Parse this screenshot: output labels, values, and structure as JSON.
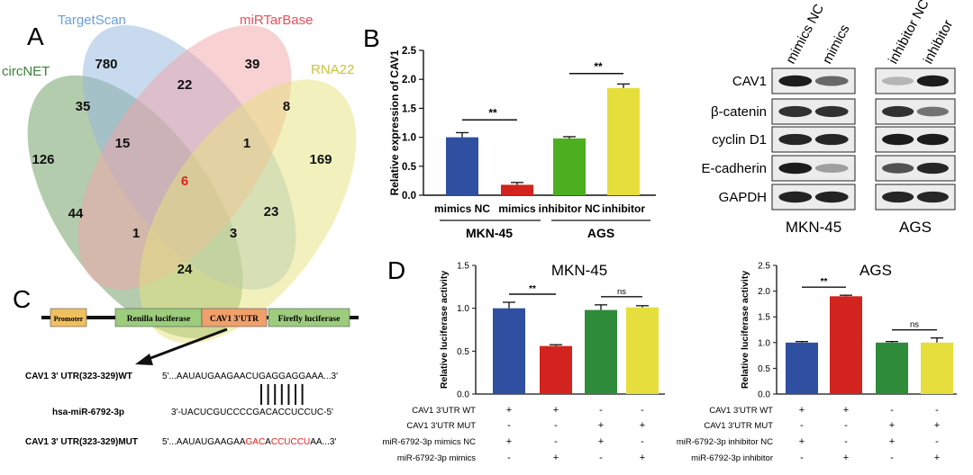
{
  "panelA": {
    "letter": "A",
    "sets": [
      {
        "name": "TargetScan",
        "color": "#6a9fd8"
      },
      {
        "name": "miRTarBase",
        "color": "#e8505b"
      },
      {
        "name": "circNET",
        "color": "#3f7f3a"
      },
      {
        "name": "RNA22",
        "color": "#c9c43a"
      }
    ],
    "fills": {
      "green": "#6a9a5e",
      "blue": "#92b6de",
      "pink": "#f2a3a8",
      "yellow": "#e6e37c"
    },
    "counts": [
      "780",
      "39",
      "35",
      "22",
      "8",
      "126",
      "15",
      "1",
      "169",
      "6",
      "44",
      "23",
      "1",
      "3",
      "24"
    ],
    "center_color": "#e02020"
  },
  "panelB": {
    "letter": "B",
    "chart_data": {
      "type": "bar",
      "ylabel": "Relative expression of CAV1",
      "ylim": [
        0,
        2.5
      ],
      "yticks": [
        "0.0",
        "0.5",
        "1.0",
        "1.5",
        "2.0",
        "2.5"
      ],
      "categories": [
        "mimics NC",
        "mimics",
        "inhibitor NC",
        "inhibitor"
      ],
      "values": [
        1.0,
        0.18,
        0.98,
        1.85
      ],
      "errors": [
        0.08,
        0.04,
        0.03,
        0.07
      ],
      "colors": [
        "#2f4fa0",
        "#d2231e",
        "#4caf20",
        "#e6de3c"
      ],
      "groups": [
        "MKN-45",
        "AGS"
      ],
      "significance": [
        "**",
        "**"
      ]
    },
    "blot": {
      "left_lanes": [
        "mimics NC",
        "mimics"
      ],
      "right_lanes": [
        "inhibitor NC",
        "inhibitor"
      ],
      "proteins": [
        "CAV1",
        "β-catenin",
        "cyclin D1",
        "E-cadherin",
        "GAPDH"
      ],
      "groups": [
        "MKN-45",
        "AGS"
      ]
    }
  },
  "panelC": {
    "letter": "C",
    "construct": [
      "Promoter",
      "Renilla luciferase",
      "CAV1 3'UTR",
      "Firefly luciferase"
    ],
    "colors": {
      "promoter": "#f0c060",
      "renilla": "#9ccc7c",
      "utr": "#f0a06a",
      "firefly": "#9ccc7c"
    },
    "wt_label": "CAV1  3' UTR(323-329)WT",
    "wt_seq": "5'...AAUAUGAAGAACUGAGGAGGAAA...3'",
    "mir_label": "hsa-miR-6792-3p",
    "mir_seq": "3'-UACUCGUCCCCGACACCUCCUC-5'",
    "mut_label": "CAV1  3' UTR(323-329)MUT",
    "mut_seq_parts": [
      "5'...AAUAUGAAGAA",
      "GAC",
      "A",
      "CCUCCU",
      "AA...3'"
    ],
    "mut_color": "#e02020"
  },
  "panelD": {
    "letter": "D",
    "charts": [
      {
        "type": "bar",
        "title": "MKN-45",
        "ylabel": "Relative luciferase activity",
        "ylim": [
          0,
          1.5
        ],
        "yticks": [
          "0.0",
          "0.5",
          "1.0",
          "1.5"
        ],
        "values": [
          1.0,
          0.56,
          0.98,
          1.01
        ],
        "errors": [
          0.07,
          0.015,
          0.06,
          0.02
        ],
        "colors": [
          "#2f4fa0",
          "#d2231e",
          "#2e8b3a",
          "#e6de3c"
        ],
        "significance": [
          "**",
          "ns"
        ],
        "row_labels": [
          "CAV1 3'UTR WT",
          "CAV1 3'UTR MUT",
          "miR-6792-3p mimics NC",
          "miR-6792-3p mimics"
        ],
        "signs": [
          [
            "+",
            "+",
            "-",
            "-"
          ],
          [
            "-",
            "-",
            "+",
            "+"
          ],
          [
            "+",
            "-",
            "+",
            "-"
          ],
          [
            "-",
            "+",
            "-",
            "+"
          ]
        ]
      },
      {
        "type": "bar",
        "title": "AGS",
        "ylabel": "Relative luciferase activity",
        "ylim": [
          0,
          2.5
        ],
        "yticks": [
          "0.0",
          "0.5",
          "1.0",
          "1.5",
          "2.0",
          "2.5"
        ],
        "values": [
          1.0,
          1.9,
          1.0,
          1.0
        ],
        "errors": [
          0.02,
          0.02,
          0.02,
          0.09
        ],
        "colors": [
          "#2f4fa0",
          "#d2231e",
          "#2e8b3a",
          "#e6de3c"
        ],
        "significance": [
          "**",
          "ns"
        ],
        "row_labels": [
          "CAV1 3'UTR WT",
          "CAV1 3'UTR MUT",
          "miR-6792-3p inhibitor NC",
          "miR-6792-3p inhibitor"
        ],
        "signs": [
          [
            "+",
            "+",
            "-",
            "-"
          ],
          [
            "-",
            "-",
            "+",
            "+"
          ],
          [
            "+",
            "-",
            "+",
            "-"
          ],
          [
            "-",
            "+",
            "-",
            "+"
          ]
        ]
      }
    ]
  }
}
